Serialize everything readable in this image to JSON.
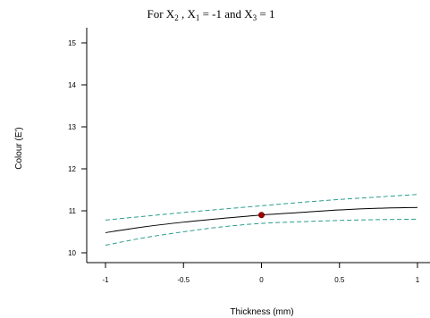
{
  "chart_data": {
    "type": "line",
    "title_parts": {
      "prefix": "For X",
      "sub1": "2",
      "mid1": " , X",
      "sub2": "1",
      "mid2": " = -1 and X",
      "sub3": "3",
      "suffix": " = 1"
    },
    "xlabel": "Thickness (mm)",
    "ylabel": "Colour (E')",
    "xlim": [
      -1,
      1
    ],
    "ylim": [
      9.8,
      15.2
    ],
    "x_ticks": [
      -1,
      -0.5,
      0,
      0.5,
      1
    ],
    "x_tick_labels": [
      "-1",
      "-0.5",
      "0",
      "0.5",
      "1"
    ],
    "y_ticks": [
      10,
      11,
      12,
      13,
      14,
      15
    ],
    "y_tick_labels": [
      "10",
      "11",
      "12",
      "13",
      "14",
      "15"
    ],
    "grid": false,
    "series": [
      {
        "role": "fit",
        "x": [
          -1,
          -0.75,
          -0.5,
          -0.25,
          0,
          0.25,
          0.5,
          0.75,
          1
        ],
        "values": [
          10.48,
          10.62,
          10.73,
          10.82,
          10.9,
          10.96,
          11.02,
          11.06,
          11.08
        ],
        "color": "#000000",
        "dashed": false
      },
      {
        "role": "upper-confidence",
        "x": [
          -1,
          -0.75,
          -0.5,
          -0.25,
          0,
          0.25,
          0.5,
          0.75,
          1
        ],
        "values": [
          10.78,
          10.87,
          10.96,
          11.04,
          11.12,
          11.2,
          11.27,
          11.33,
          11.39
        ],
        "color": "#2a9d8f",
        "dashed": true
      },
      {
        "role": "lower-confidence",
        "x": [
          -1,
          -0.75,
          -0.5,
          -0.25,
          0,
          0.25,
          0.5,
          0.75,
          1
        ],
        "values": [
          10.18,
          10.36,
          10.5,
          10.62,
          10.7,
          10.74,
          10.77,
          10.79,
          10.8
        ],
        "color": "#2a9d8f",
        "dashed": true
      }
    ],
    "marker": {
      "x": 0,
      "y": 10.9,
      "color": "#a00000"
    }
  }
}
